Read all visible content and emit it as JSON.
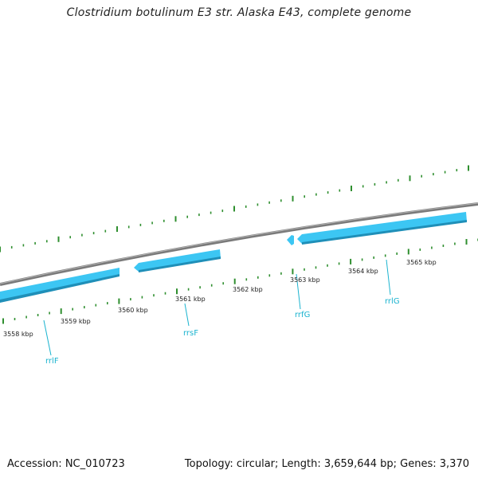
{
  "title": "Clostridium botulinum E3 str. Alaska E43, complete genome",
  "footer": {
    "accession": "Accession: NC_010723",
    "summary": "Topology: circular; Length: 3,659,644 bp; Genes: 3,370"
  },
  "colors": {
    "backbone": "#7a7a7a",
    "gene_fill": "#3cc6f3",
    "gene_edge": "#1f8fb8",
    "gene_label": "#1ab3cf",
    "ticks": "#2f8f2f"
  },
  "scale_labels": [
    "3558 kbp",
    "3559 kbp",
    "3560 kbp",
    "3561 kbp",
    "3562 kbp",
    "3563 kbp",
    "3564 kbp",
    "3565 kbp"
  ],
  "genes": [
    {
      "name": "rrlF"
    },
    {
      "name": "rrsF"
    },
    {
      "name": "rrfG"
    },
    {
      "name": "rrlG"
    }
  ]
}
